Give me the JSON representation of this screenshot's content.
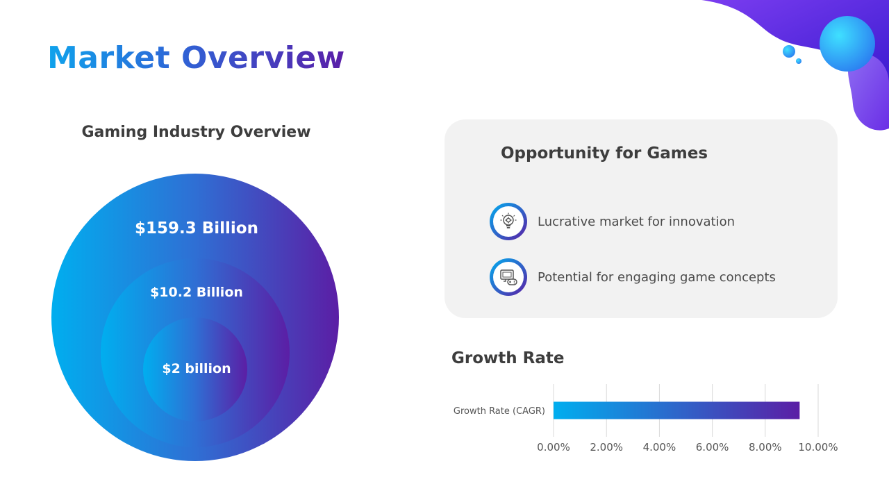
{
  "slide": {
    "title": "Market Overview"
  },
  "industry": {
    "subtitle": "Gaming Industry Overview",
    "circles": [
      {
        "label": "$159.3 Billion"
      },
      {
        "label": "$10.2 Billion"
      },
      {
        "label": "$2 billion"
      }
    ]
  },
  "opportunity": {
    "title": "Opportunity for Games",
    "items": [
      {
        "text": "Lucrative market for innovation",
        "icon": "lightbulb-gear-icon"
      },
      {
        "text": "Potential for engaging game concepts",
        "icon": "monitor-gamepad-icon"
      }
    ]
  },
  "growth": {
    "title": "Growth Rate"
  },
  "chart_data": {
    "type": "bar",
    "orientation": "horizontal",
    "categories": [
      "Growth Rate (CAGR)"
    ],
    "values": [
      9.3
    ],
    "xlim": [
      0,
      10
    ],
    "xticks": [
      0,
      2,
      4,
      6,
      8,
      10
    ],
    "xtick_labels": [
      "0.00%",
      "2.00%",
      "4.00%",
      "6.00%",
      "8.00%",
      "10.00%"
    ],
    "grid": true,
    "bar_gradient": [
      "#00aeef",
      "#5b1ea5"
    ]
  },
  "colors": {
    "gradient_start": "#00aeef",
    "gradient_end": "#5b1ea5",
    "panel_bg": "#f2f2f2"
  }
}
